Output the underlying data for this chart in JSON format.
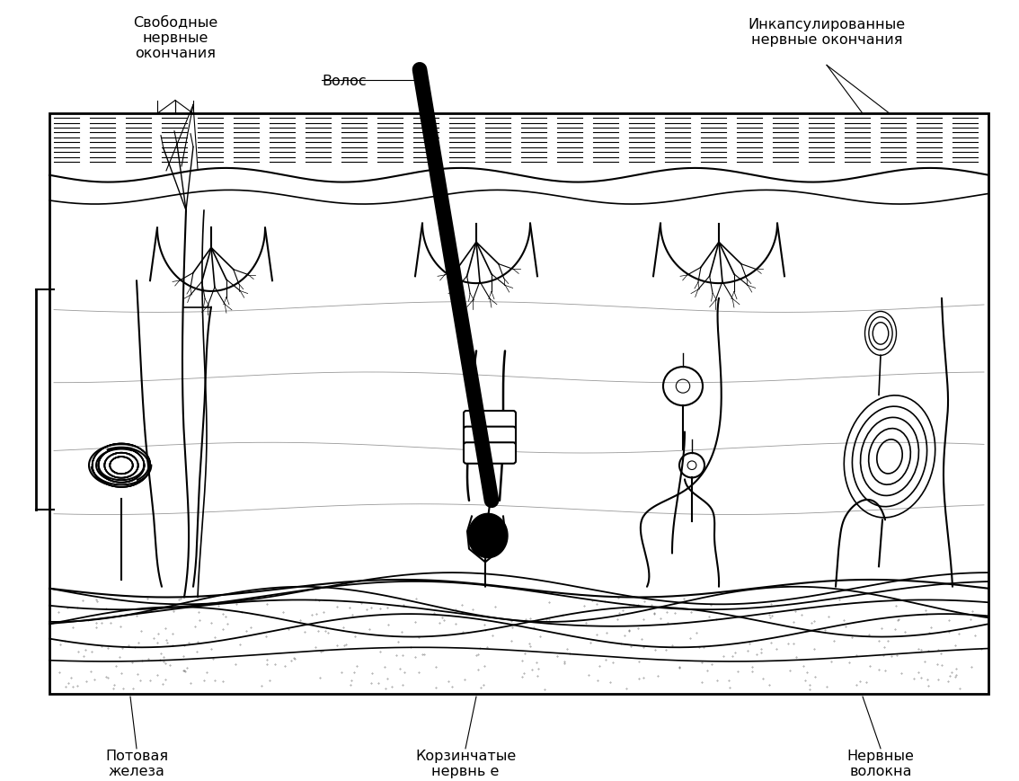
{
  "bg_color": "#ffffff",
  "line_color": "#000000",
  "labels": {
    "svobodnye": "Свободные\nнервные\nокончания",
    "volos": "Волос",
    "inkapsulirovannye": "Инкапсулированные\nнервные окончания",
    "potovaya": "Потовая\nжелеза",
    "korzinchaty": "Корзинчатые\nнервнь е",
    "nervnye_volokna": "Нервные\nволокна"
  },
  "figsize": [
    11.34,
    8.7
  ],
  "dpi": 100
}
